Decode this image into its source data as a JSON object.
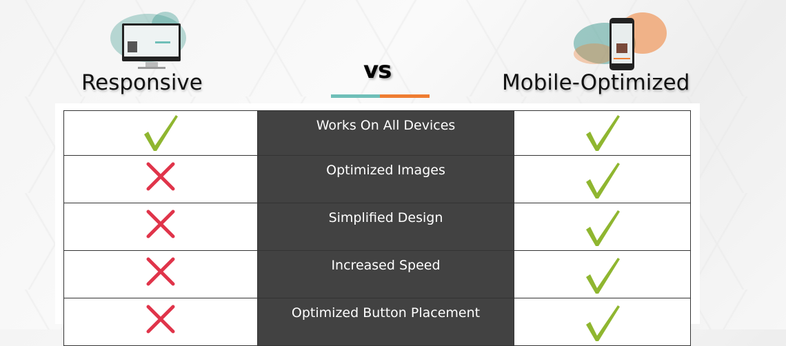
{
  "left": {
    "title": "Responsive",
    "image": "desktop-monitor-illustration"
  },
  "center": {
    "label": "vs"
  },
  "right": {
    "title": "Mobile-Optimized",
    "image": "smartphone-illustration"
  },
  "colors": {
    "teal": "#6fbfb8",
    "orange": "#ef7d32",
    "check": "#8fb630",
    "cross": "#e0344a",
    "feature_bg": "#424242"
  },
  "rows": [
    {
      "feature": "Works On All Devices",
      "responsive": "check-icon",
      "mobile": "check-icon"
    },
    {
      "feature": "Optimized Images",
      "responsive": "cross-icon",
      "mobile": "check-icon"
    },
    {
      "feature": "Simplified Design",
      "responsive": "cross-icon",
      "mobile": "check-icon"
    },
    {
      "feature": "Increased Speed",
      "responsive": "cross-icon",
      "mobile": "check-icon"
    },
    {
      "feature": "Optimized Button Placement",
      "responsive": "cross-icon",
      "mobile": "check-icon"
    }
  ]
}
